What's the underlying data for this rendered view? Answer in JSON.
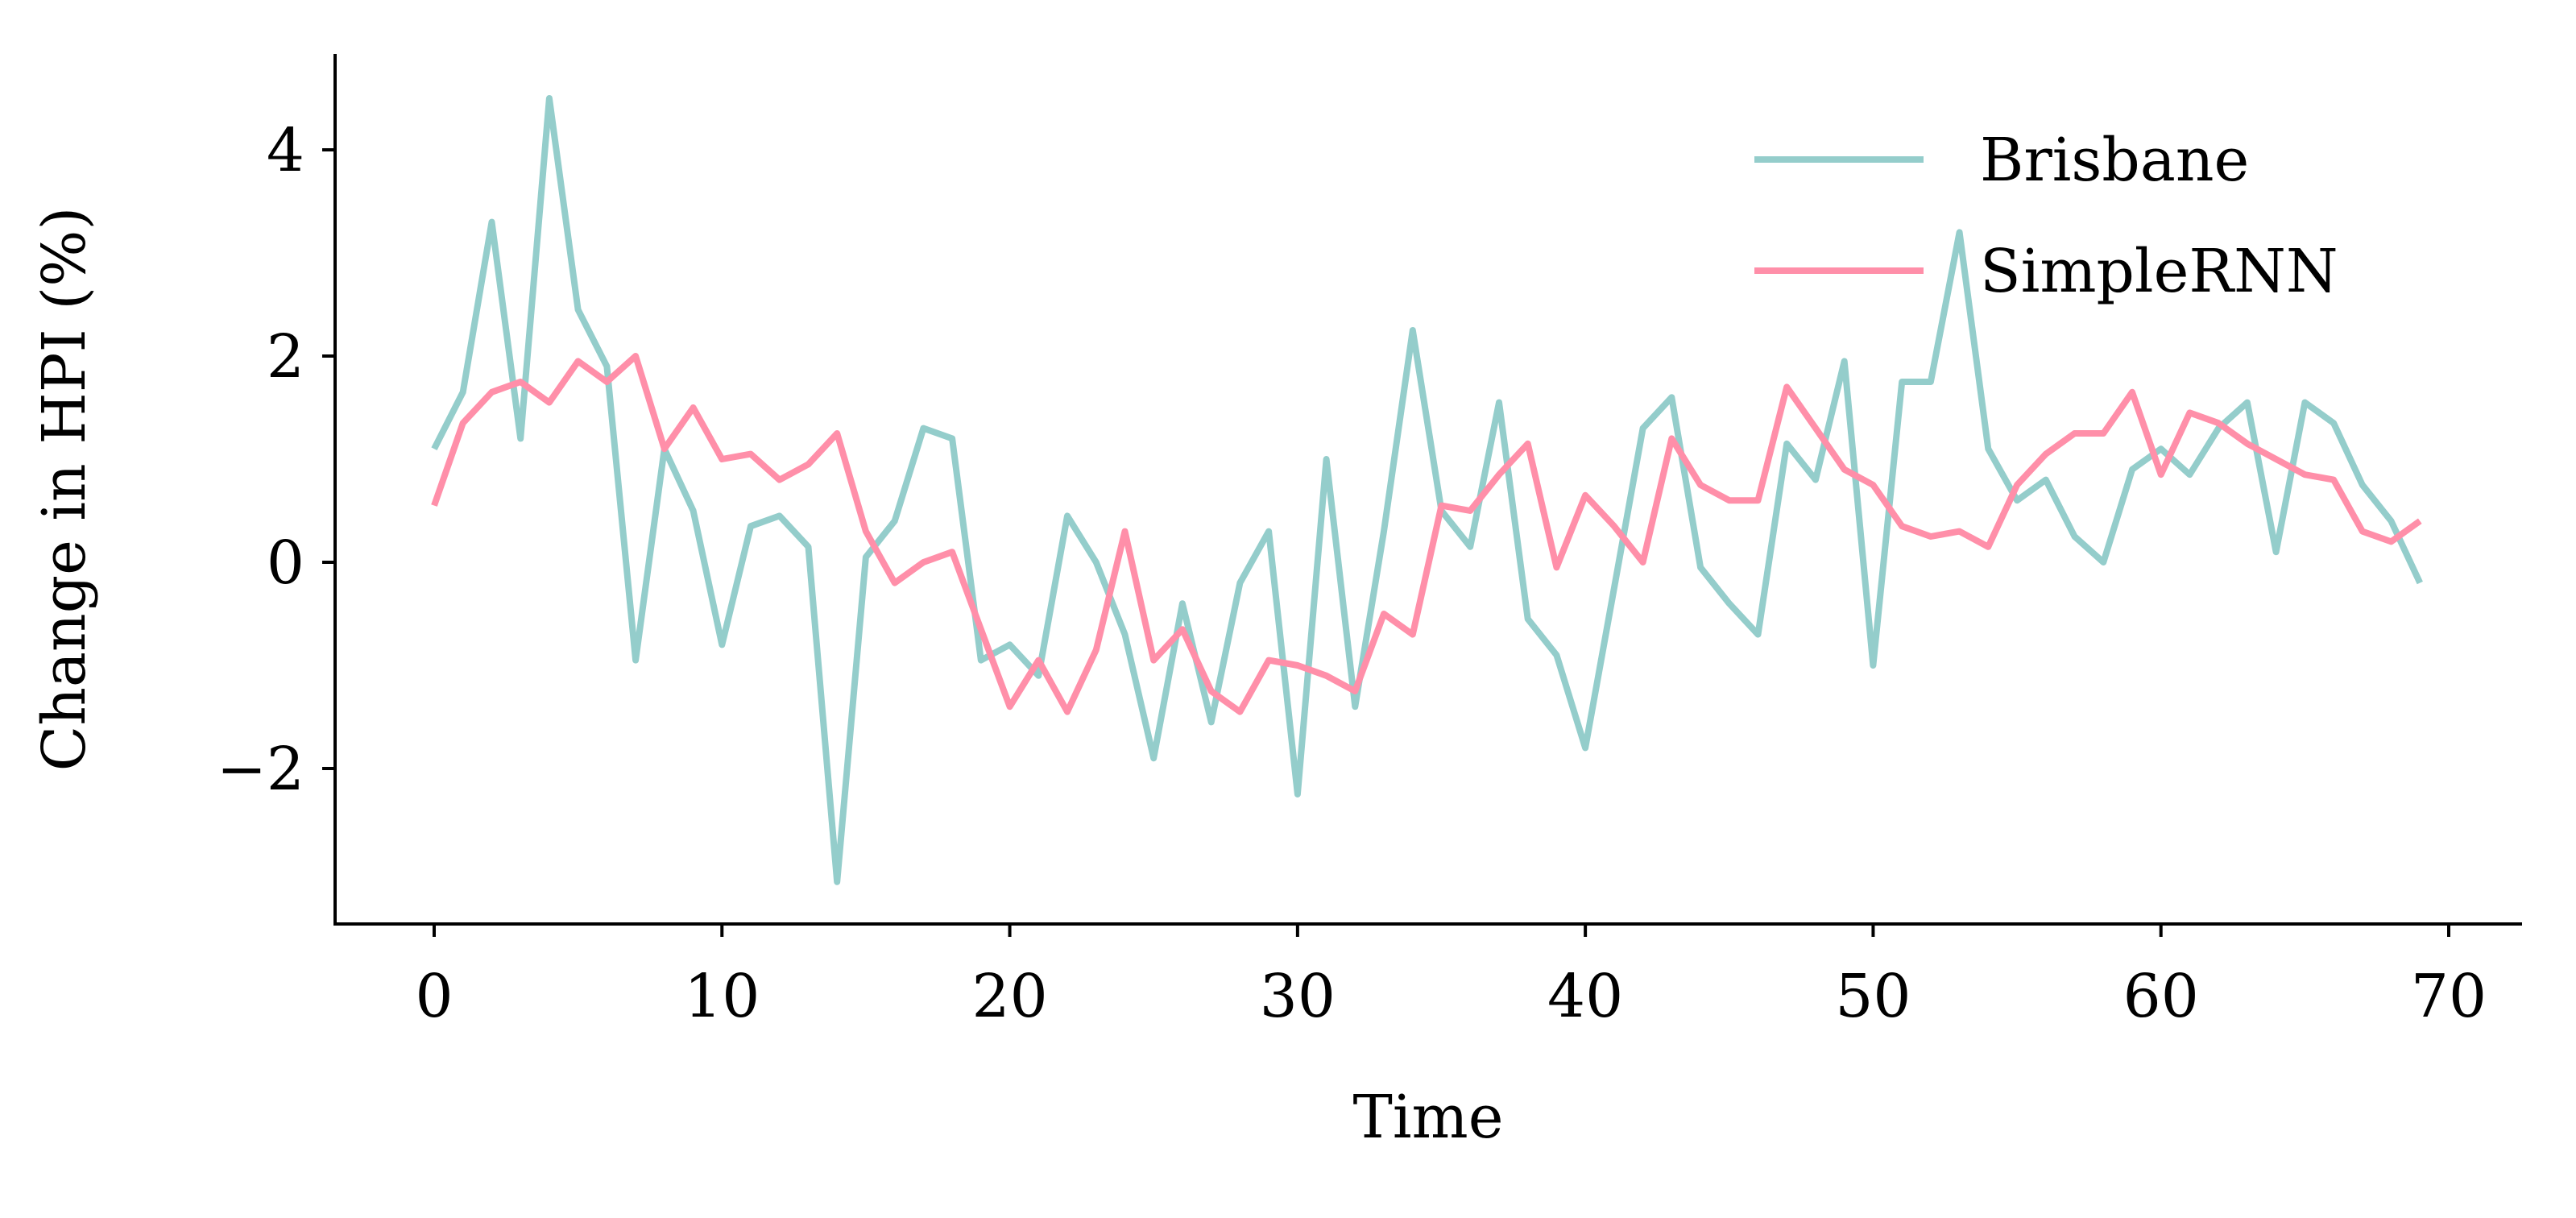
{
  "chart_data": {
    "type": "line",
    "title": "",
    "xlabel": "Time",
    "ylabel": "Change in HPI (%)",
    "xlim": [
      -3.5,
      72.5
    ],
    "ylim": [
      -3.5,
      4.9
    ],
    "xticks": [
      0,
      10,
      20,
      30,
      40,
      50,
      60,
      70
    ],
    "xtick_labels": [
      "0",
      "10",
      "20",
      "30",
      "40",
      "50",
      "60",
      "70"
    ],
    "yticks": [
      -2,
      0,
      2,
      4
    ],
    "ytick_labels": [
      "−2",
      "0",
      "2",
      "4"
    ],
    "grid": false,
    "legend_position": "top-right",
    "x": [
      0,
      1,
      2,
      3,
      4,
      5,
      6,
      7,
      8,
      9,
      10,
      11,
      12,
      13,
      14,
      15,
      16,
      17,
      18,
      19,
      20,
      21,
      22,
      23,
      24,
      25,
      26,
      27,
      28,
      29,
      30,
      31,
      32,
      33,
      34,
      35,
      36,
      37,
      38,
      39,
      40,
      41,
      42,
      43,
      44,
      45,
      46,
      47,
      48,
      49,
      50,
      51,
      52,
      53,
      54,
      55,
      56,
      57,
      58,
      59,
      60,
      61,
      62,
      63,
      64,
      65,
      66,
      67,
      68,
      69
    ],
    "series": [
      {
        "name": "Brisbane",
        "color": "#94cdcb",
        "values": [
          1.1,
          1.65,
          3.3,
          1.2,
          4.5,
          2.45,
          1.9,
          -0.95,
          1.1,
          0.5,
          -0.8,
          0.35,
          0.45,
          0.15,
          -3.1,
          0.05,
          0.4,
          1.3,
          1.2,
          -0.95,
          -0.8,
          -1.1,
          0.45,
          0.0,
          -0.7,
          -1.9,
          -0.4,
          -1.55,
          -0.2,
          0.3,
          -2.25,
          1.0,
          -1.4,
          0.3,
          2.25,
          0.5,
          0.15,
          1.55,
          -0.55,
          -0.9,
          -1.8,
          -0.25,
          1.3,
          1.6,
          -0.05,
          -0.4,
          -0.7,
          1.15,
          0.8,
          1.95,
          -1.0,
          1.75,
          1.75,
          3.2,
          1.1,
          0.6,
          0.8,
          0.25,
          0.0,
          0.9,
          1.1,
          0.85,
          1.3,
          1.55,
          0.1,
          1.55,
          1.35,
          0.75,
          0.4,
          -0.2
        ]
      },
      {
        "name": "SimpleRNN",
        "color": "#ff8fa9",
        "values": [
          0.55,
          1.35,
          1.65,
          1.75,
          1.55,
          1.95,
          1.75,
          2.0,
          1.1,
          1.5,
          1.0,
          1.05,
          0.8,
          0.95,
          1.25,
          0.3,
          -0.2,
          0.0,
          0.1,
          -0.65,
          -1.4,
          -0.95,
          -1.45,
          -0.85,
          0.3,
          -0.95,
          -0.65,
          -1.25,
          -1.45,
          -0.95,
          -1.0,
          -1.1,
          -1.25,
          -0.5,
          -0.7,
          0.55,
          0.5,
          0.85,
          1.15,
          -0.05,
          0.65,
          0.35,
          0.0,
          1.2,
          0.75,
          0.6,
          0.6,
          1.7,
          1.3,
          0.9,
          0.75,
          0.35,
          0.25,
          0.3,
          0.15,
          0.75,
          1.05,
          1.25,
          1.25,
          1.65,
          0.85,
          1.45,
          1.35,
          1.15,
          1.0,
          0.85,
          0.8,
          0.3,
          0.2,
          0.4
        ]
      }
    ]
  }
}
